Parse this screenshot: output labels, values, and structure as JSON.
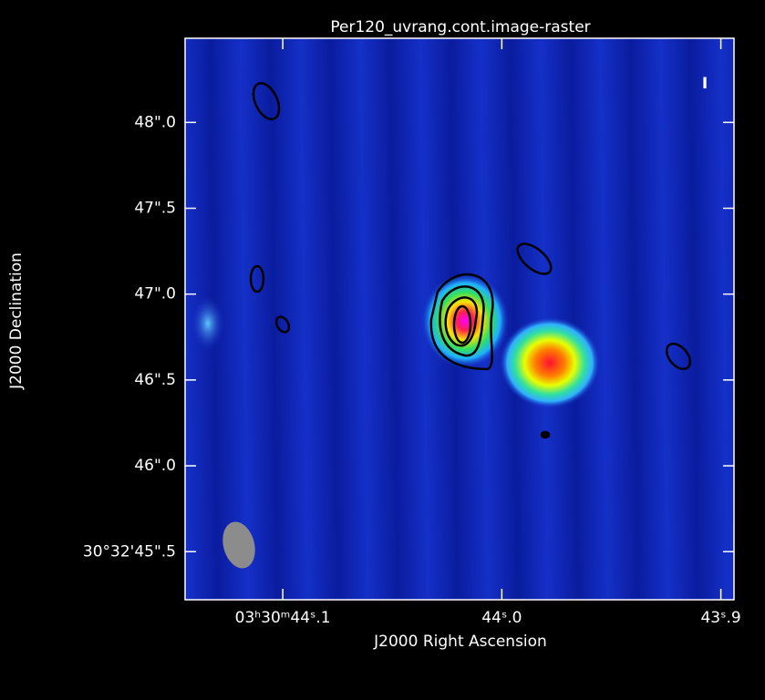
{
  "chart_data": {
    "type": "image",
    "title": "Per120_uvrang.cont.image-raster",
    "x_label": "J2000 Right Ascension",
    "y_label": "J2000 Declination",
    "stokes_label": "I",
    "xlim": [
      44.1446,
      43.894
    ],
    "ylim": [
      45.22,
      48.49
    ],
    "xticks": [
      {
        "value": 44.1,
        "label": "03ʰ30ᵐ44ˢ.1"
      },
      {
        "value": 44.0,
        "label": "44ˢ.0"
      },
      {
        "value": 43.9,
        "label": "43ˢ.9"
      }
    ],
    "yticks": [
      {
        "value": 45.5,
        "label": "30°32'45\".5"
      },
      {
        "value": 46.0,
        "label": "46\".0"
      },
      {
        "value": 46.5,
        "label": "46\".5"
      },
      {
        "value": 47.0,
        "label": "47\".0"
      },
      {
        "value": 47.5,
        "label": "47\".5"
      },
      {
        "value": 48.0,
        "label": "48\".0"
      }
    ]
  }
}
